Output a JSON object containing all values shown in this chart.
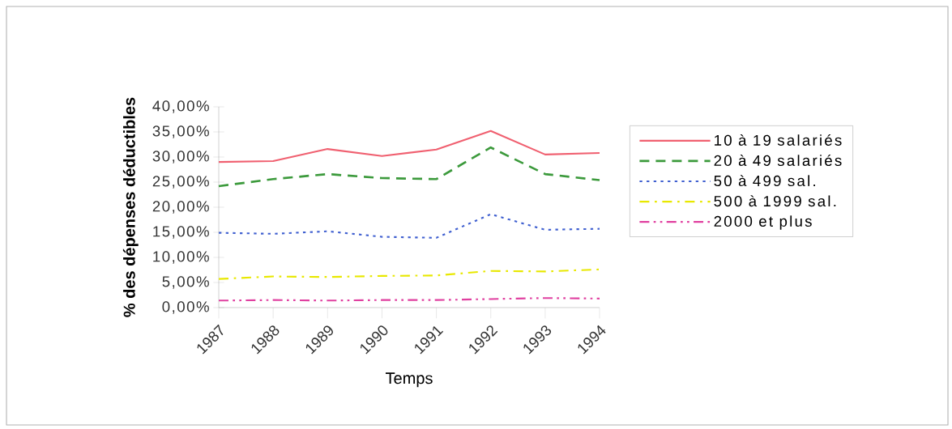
{
  "chart_data": {
    "type": "line",
    "xlabel": "Temps",
    "ylabel": "% des dépenses déductibles",
    "categories": [
      "1987",
      "1988",
      "1989",
      "1990",
      "1991",
      "1992",
      "1993",
      "1994"
    ],
    "series": [
      {
        "name": "10 à 19 salariés",
        "color": "#f06070",
        "line_style": "solid",
        "values": [
          29.0,
          29.2,
          31.6,
          30.2,
          31.5,
          35.2,
          30.5,
          30.8
        ]
      },
      {
        "name": "20 à 49 salariés",
        "color": "#3c9a3c",
        "line_style": "dashed",
        "values": [
          24.2,
          25.6,
          26.6,
          25.8,
          25.6,
          31.9,
          26.6,
          25.4
        ]
      },
      {
        "name": "50 à 499 sal.",
        "color": "#4060d0",
        "line_style": "dotted",
        "values": [
          14.9,
          14.7,
          15.2,
          14.1,
          13.9,
          18.6,
          15.5,
          15.7
        ]
      },
      {
        "name": "500 à 1999 sal.",
        "color": "#e8e800",
        "line_style": "dashdotted",
        "values": [
          5.7,
          6.2,
          6.1,
          6.3,
          6.4,
          7.3,
          7.2,
          7.6
        ]
      },
      {
        "name": "2000 et plus",
        "color": "#e040a0",
        "line_style": "dashdotdotted",
        "values": [
          1.4,
          1.5,
          1.4,
          1.5,
          1.5,
          1.7,
          1.9,
          1.8
        ]
      }
    ],
    "ylim": [
      0,
      40
    ],
    "yticks": [
      {
        "value": 0,
        "label": "0,00%"
      },
      {
        "value": 5,
        "label": "5,00%"
      },
      {
        "value": 10,
        "label": "10,00%"
      },
      {
        "value": 15,
        "label": "15,00%"
      },
      {
        "value": 20,
        "label": "20,00%"
      },
      {
        "value": 25,
        "label": "25,00%"
      },
      {
        "value": 30,
        "label": "30,00%"
      },
      {
        "value": 35,
        "label": "35,00%"
      },
      {
        "value": 40,
        "label": "40,00%"
      }
    ],
    "grid": false,
    "legend": "right",
    "marker": "none"
  }
}
